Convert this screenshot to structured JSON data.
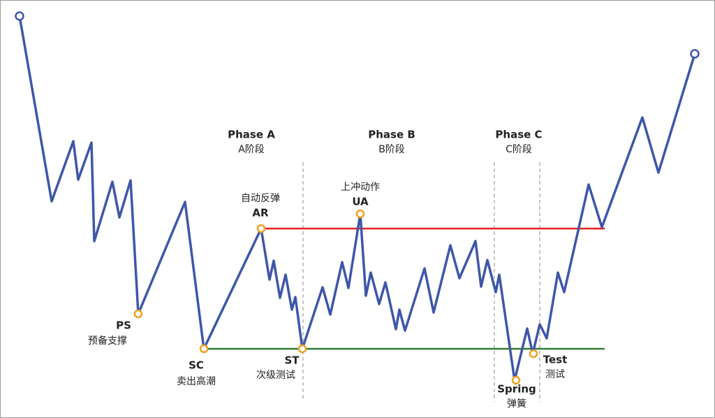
{
  "phases": [
    {
      "title": "Phase A",
      "subtitle": "A阶段"
    },
    {
      "title": "Phase B",
      "subtitle": "B阶段"
    },
    {
      "title": "Phase C",
      "subtitle": "C阶段"
    }
  ],
  "events": [
    {
      "code": "PS",
      "label": "预备支撑"
    },
    {
      "code": "SC",
      "label": "卖出高潮"
    },
    {
      "code": "AR",
      "label": "自动反弹"
    },
    {
      "code": "ST",
      "label": "次级测试"
    },
    {
      "code": "UA",
      "label": "上冲动作"
    },
    {
      "code": "Spring",
      "label": "弹簧"
    },
    {
      "code": "Test",
      "label": "测试"
    }
  ]
}
